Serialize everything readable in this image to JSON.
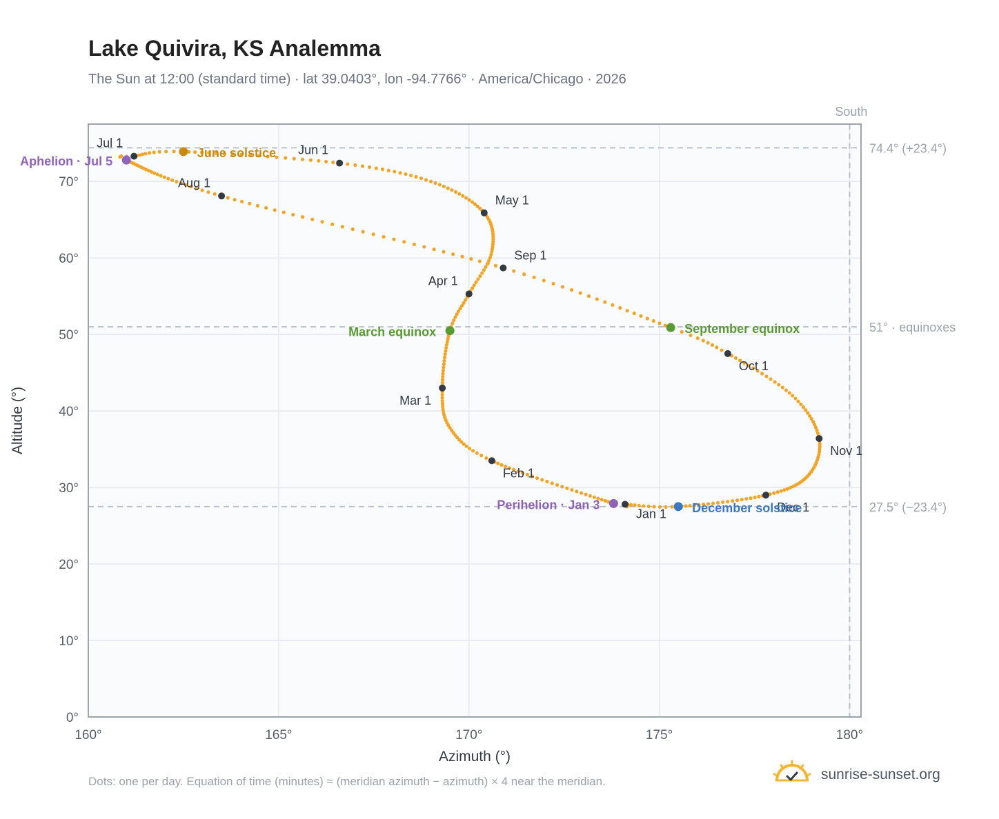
{
  "title": "Lake Quivira, KS Analemma",
  "subtitle": "The Sun at 12:00 (standard time) · lat 39.0403°, lon -94.7766° · America/Chicago · 2026",
  "footnote": "Dots: one per day. Equation of time (minutes) ≈ (meridian azimuth − azimuth) × 4 near the meridian.",
  "brand": {
    "text": "sunrise-sunset.org",
    "icon": "sun-check-icon"
  },
  "colors": {
    "curve": "#f0a52a",
    "month_marker": "#333a44",
    "solstice_june": "#c98a12",
    "equinox": "#5a9a32",
    "solstice_december": "#3b78c2",
    "apsis": "#8e63b8",
    "reference_line": "#b8c2cc",
    "plot_background": "#f9fbfd"
  },
  "chart_data": {
    "type": "scatter",
    "xlabel": "Azimuth (°)",
    "ylabel": "Altitude (°)",
    "xlim": [
      160,
      180.3
    ],
    "ylim": [
      0,
      77.5
    ],
    "xticks": [
      160,
      165,
      170,
      175,
      180
    ],
    "yticks": [
      0,
      10,
      20,
      30,
      40,
      50,
      60,
      70
    ],
    "xtick_labels": [
      "160°",
      "165°",
      "170°",
      "175°",
      "180°"
    ],
    "ytick_labels": [
      "0°",
      "10°",
      "20°",
      "30°",
      "40°",
      "50°",
      "60°",
      "70°"
    ],
    "grid": true,
    "south_line": {
      "x": 180,
      "label": "South"
    },
    "reference_lines": [
      {
        "y": 74.4,
        "label": "74.4° (+23.4°)"
      },
      {
        "y": 51.0,
        "label": "51° · equinoxes"
      },
      {
        "y": 27.5,
        "label": "27.5° (−23.4°)"
      }
    ],
    "path_keypoints": [
      {
        "doy": 1,
        "az": 174.1,
        "alt": 27.8
      },
      {
        "doy": 3,
        "az": 173.8,
        "alt": 27.9
      },
      {
        "doy": 32,
        "az": 170.6,
        "alt": 33.5
      },
      {
        "doy": 46,
        "az": 169.5,
        "alt": 37.8
      },
      {
        "doy": 60,
        "az": 169.3,
        "alt": 43.0
      },
      {
        "doy": 79,
        "az": 169.5,
        "alt": 50.5
      },
      {
        "doy": 91,
        "az": 170.0,
        "alt": 55.3
      },
      {
        "doy": 105,
        "az": 170.6,
        "alt": 60.8
      },
      {
        "doy": 121,
        "az": 170.4,
        "alt": 65.9
      },
      {
        "doy": 137,
        "az": 169.0,
        "alt": 70.0
      },
      {
        "doy": 152,
        "az": 166.6,
        "alt": 72.4
      },
      {
        "doy": 172,
        "az": 162.5,
        "alt": 73.9
      },
      {
        "doy": 182,
        "az": 161.2,
        "alt": 73.3
      },
      {
        "doy": 186,
        "az": 161.0,
        "alt": 72.8
      },
      {
        "doy": 213,
        "az": 163.5,
        "alt": 68.1
      },
      {
        "doy": 244,
        "az": 170.9,
        "alt": 58.7
      },
      {
        "doy": 265,
        "az": 175.3,
        "alt": 50.9
      },
      {
        "doy": 274,
        "az": 176.8,
        "alt": 47.5
      },
      {
        "doy": 290,
        "az": 178.5,
        "alt": 42.0
      },
      {
        "doy": 305,
        "az": 179.2,
        "alt": 36.4
      },
      {
        "doy": 320,
        "az": 178.9,
        "alt": 31.5
      },
      {
        "doy": 335,
        "az": 177.8,
        "alt": 29.0
      },
      {
        "doy": 355,
        "az": 175.5,
        "alt": 27.5
      },
      {
        "doy": 366,
        "az": 174.1,
        "alt": 27.8
      }
    ],
    "month_markers": [
      {
        "label": "Jan 1",
        "az": 174.1,
        "alt": 27.8,
        "anchor": "start",
        "dx": 16,
        "dy": 20
      },
      {
        "label": "Feb 1",
        "az": 170.6,
        "alt": 33.5,
        "anchor": "start",
        "dx": 16,
        "dy": 24
      },
      {
        "label": "Mar 1",
        "az": 169.3,
        "alt": 43.0,
        "anchor": "end",
        "dx": -16,
        "dy": 24
      },
      {
        "label": "Apr 1",
        "az": 170.0,
        "alt": 55.3,
        "anchor": "end",
        "dx": -16,
        "dy": -13
      },
      {
        "label": "May 1",
        "az": 170.4,
        "alt": 65.9,
        "anchor": "start",
        "dx": 16,
        "dy": -12
      },
      {
        "label": "Jun 1",
        "az": 166.6,
        "alt": 72.4,
        "anchor": "end",
        "dx": -16,
        "dy": -13
      },
      {
        "label": "Jul 1",
        "az": 161.2,
        "alt": 73.3,
        "anchor": "end",
        "dx": -16,
        "dy": -13
      },
      {
        "label": "Aug 1",
        "az": 163.5,
        "alt": 68.1,
        "anchor": "end",
        "dx": -16,
        "dy": -13
      },
      {
        "label": "Sep 1",
        "az": 170.9,
        "alt": 58.7,
        "anchor": "start",
        "dx": 16,
        "dy": -12
      },
      {
        "label": "Oct 1",
        "az": 176.8,
        "alt": 47.5,
        "anchor": "start",
        "dx": 16,
        "dy": 24
      },
      {
        "label": "Nov 1",
        "az": 179.2,
        "alt": 36.4,
        "anchor": "start",
        "dx": 16,
        "dy": 24
      },
      {
        "label": "Dec 1",
        "az": 177.8,
        "alt": 29.0,
        "anchor": "start",
        "dx": 16,
        "dy": 24
      }
    ],
    "events": [
      {
        "label": "June solstice",
        "az": 162.5,
        "alt": 73.9,
        "color": "#c98a12",
        "anchor": "start",
        "dx": 20,
        "dy": 8
      },
      {
        "label": "March equinox",
        "az": 169.5,
        "alt": 50.5,
        "color": "#5a9a32",
        "anchor": "end",
        "dx": -20,
        "dy": 8
      },
      {
        "label": "September equinox",
        "az": 175.3,
        "alt": 50.9,
        "color": "#5a9a32",
        "anchor": "start",
        "dx": 20,
        "dy": 8
      },
      {
        "label": "December solstice",
        "az": 175.5,
        "alt": 27.5,
        "color": "#3b78c2",
        "anchor": "start",
        "dx": 20,
        "dy": 8
      },
      {
        "label": "Aphelion · Jul 5",
        "az": 161.0,
        "alt": 72.8,
        "color": "#8e63b8",
        "anchor": "end",
        "dx": -20,
        "dy": 8
      },
      {
        "label": "Perihelion · Jan 3",
        "az": 173.8,
        "alt": 27.9,
        "color": "#8e63b8",
        "anchor": "end",
        "dx": -20,
        "dy": 8
      }
    ]
  }
}
